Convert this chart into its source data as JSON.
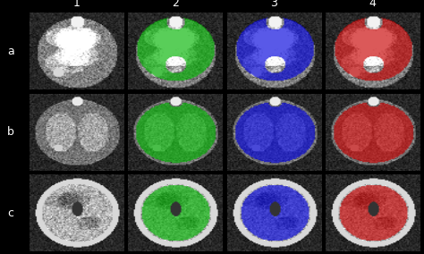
{
  "figure_width": 4.74,
  "figure_height": 2.84,
  "dpi": 100,
  "background_color": "#000000",
  "row_labels": [
    "a",
    "b",
    "c"
  ],
  "col_labels": [
    "1",
    "2",
    "3",
    "4"
  ],
  "label_color": "#ffffff",
  "label_fontsize": 9,
  "overlay_colors": {
    "1": null,
    "2": [
      0,
      180,
      0
    ],
    "3": [
      0,
      0,
      220
    ],
    "4": [
      200,
      0,
      0
    ]
  }
}
